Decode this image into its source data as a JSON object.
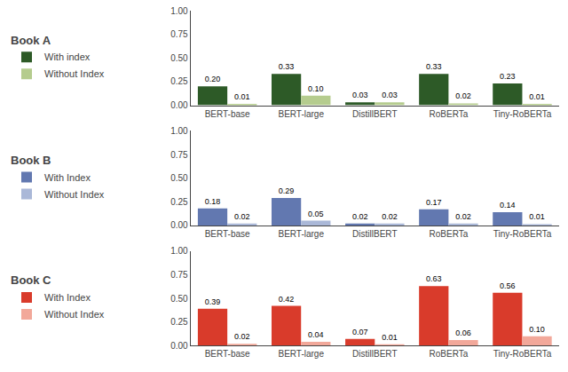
{
  "chart_data": [
    {
      "type": "bar",
      "title": "Book A",
      "categories": [
        "BERT-base",
        "BERT-large",
        "DistillBERT",
        "RoBERTa",
        "Tiny-RoBERTa"
      ],
      "series": [
        {
          "name": "With index",
          "color": "#2d5a27",
          "values": [
            0.2,
            0.33,
            0.03,
            0.33,
            0.23
          ],
          "value_labels": [
            "0.20",
            "0.33",
            "0.03",
            "0.33",
            "0.23"
          ]
        },
        {
          "name": "Without Index",
          "color": "#b5cc8e",
          "values": [
            0.01,
            0.1,
            0.03,
            0.02,
            0.01
          ],
          "value_labels": [
            "0.01",
            "0.10",
            "0.03",
            "0.02",
            "0.01"
          ]
        }
      ],
      "ylim": [
        0,
        1.0
      ],
      "yticks": [
        {
          "value": 0,
          "label": "0.00"
        },
        0.25,
        {
          "value": 0.5,
          "label": "0.50"
        },
        0.75,
        {
          "value": 1.0,
          "label": "1.00"
        }
      ],
      "grid": false,
      "data_labels": true,
      "legend": "left"
    },
    {
      "type": "bar",
      "title": "Book B",
      "categories": [
        "BERT-base",
        "BERT-large",
        "DistillBERT",
        "RoBERTa",
        "Tiny-RoBERTa"
      ],
      "series": [
        {
          "name": "With Index",
          "color": "#6278b0",
          "values": [
            0.18,
            0.29,
            0.02,
            0.17,
            0.14
          ],
          "value_labels": [
            "0.18",
            "0.29",
            "0.02",
            "0.17",
            "0.14"
          ]
        },
        {
          "name": "Without Index",
          "color": "#aab8d8",
          "values": [
            0.02,
            0.05,
            0.02,
            0.02,
            0.01
          ],
          "value_labels": [
            "0.02",
            "0.05",
            "0.02",
            "0.02",
            "0.01"
          ]
        }
      ],
      "ylim": [
        0,
        1.0
      ],
      "yticks": [
        {
          "value": 0,
          "label": "0.00"
        },
        0.25,
        {
          "value": 0.5,
          "label": "0.50"
        },
        0.75,
        {
          "value": 1.0,
          "label": "1.00"
        }
      ],
      "grid": false,
      "data_labels": true,
      "legend": "left"
    },
    {
      "type": "bar",
      "title": "Book C",
      "categories": [
        "BERT-base",
        "BERT-large",
        "DistillBERT",
        "RoBERTa",
        "Tiny-RoBERTa"
      ],
      "series": [
        {
          "name": "With Index",
          "color": "#d93b2b",
          "values": [
            0.39,
            0.42,
            0.07,
            0.63,
            0.56
          ],
          "value_labels": [
            "0.39",
            "0.42",
            "0.07",
            "0.63",
            "0.56"
          ]
        },
        {
          "name": "Without Index",
          "color": "#f2a89a",
          "values": [
            0.02,
            0.04,
            0.01,
            0.06,
            0.1
          ],
          "value_labels": [
            "0.02",
            "0.04",
            "0.01",
            "0.06",
            "0.10"
          ]
        }
      ],
      "ylim": [
        0,
        1.0
      ],
      "yticks": [
        {
          "value": 0,
          "label": "0.00"
        },
        0.25,
        {
          "value": 0.5,
          "label": "0.50"
        },
        0.75,
        {
          "value": 1.0,
          "label": "1.00"
        }
      ],
      "grid": false,
      "data_labels": true,
      "legend": "left"
    }
  ]
}
